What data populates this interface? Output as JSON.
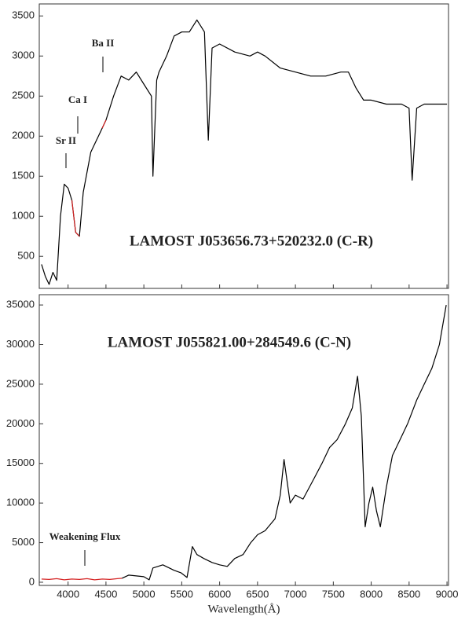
{
  "chart_data": [
    {
      "type": "line",
      "title": "LAMOST J053656.73+520232.0 (C-R)",
      "annotations": [
        "Sr II",
        "Ca I",
        "Ba II"
      ],
      "x": [
        3650,
        3700,
        3750,
        3800,
        3850,
        3900,
        3950,
        4000,
        4050,
        4100,
        4150,
        4200,
        4300,
        4400,
        4450,
        4500,
        4600,
        4700,
        4800,
        4900,
        5000,
        5100,
        5120,
        5170,
        5200,
        5300,
        5400,
        5500,
        5600,
        5700,
        5800,
        5850,
        5900,
        6000,
        6200,
        6400,
        6500,
        6600,
        6800,
        7000,
        7200,
        7400,
        7600,
        7700,
        7800,
        7900,
        8000,
        8200,
        8400,
        8500,
        8540,
        8600,
        8700,
        8800,
        9000
      ],
      "series": [
        {
          "color": "#000000",
          "values": [
            400,
            250,
            150,
            300,
            200,
            1000,
            1400,
            1350,
            1200,
            800,
            750,
            1300,
            1800,
            2000,
            2100,
            2200,
            2500,
            2750,
            2700,
            2800,
            2650,
            2500,
            1500,
            2700,
            2800,
            3000,
            3250,
            3300,
            3300,
            3450,
            3300,
            1950,
            3100,
            3150,
            3050,
            3000,
            3050,
            3000,
            2850,
            2800,
            2750,
            2750,
            2800,
            2800,
            2600,
            2450,
            2450,
            2400,
            2400,
            2350,
            1450,
            2350,
            2400,
            2400,
            2400
          ]
        },
        {
          "color": "#d42020",
          "values": [
            null,
            null,
            null,
            null,
            null,
            null,
            null,
            null,
            1200,
            800,
            750,
            null,
            null,
            null,
            2100,
            2200,
            null,
            null,
            null,
            null,
            null,
            null,
            null,
            null,
            null,
            null,
            null,
            null,
            null,
            null,
            null,
            null,
            null,
            null,
            null,
            null,
            null,
            null,
            null,
            null,
            null,
            null,
            null,
            null,
            null,
            null,
            null,
            null,
            null,
            null,
            null,
            null,
            null,
            null,
            null
          ]
        }
      ],
      "xlim": [
        3620,
        9020
      ],
      "ylim": [
        100,
        3650
      ],
      "xticks": [
        4000,
        4500,
        5000,
        5500,
        6000,
        6500,
        7000,
        7500,
        8000,
        8500,
        9000
      ],
      "show_xtick_labels": false,
      "yticks": [
        500,
        1000,
        1500,
        2000,
        2500,
        3000,
        3500
      ]
    },
    {
      "type": "line",
      "title": "LAMOST J055821.00+284549.6 (C-N)",
      "annotations": [
        "Weakening Flux"
      ],
      "x_label": "Wavelength(Å)",
      "x": [
        3650,
        3750,
        3850,
        3950,
        4050,
        4150,
        4250,
        4350,
        4450,
        4550,
        4650,
        4710,
        4800,
        4900,
        5000,
        5070,
        5120,
        5250,
        5400,
        5490,
        5570,
        5640,
        5700,
        5790,
        5900,
        6000,
        6100,
        6200,
        6310,
        6410,
        6500,
        6600,
        6730,
        6800,
        6850,
        6930,
        7000,
        7100,
        7240,
        7350,
        7450,
        7550,
        7660,
        7750,
        7820,
        7870,
        7920,
        7970,
        8020,
        8070,
        8120,
        8200,
        8280,
        8380,
        8480,
        8600,
        8700,
        8800,
        8900,
        8990
      ],
      "series": [
        {
          "color": "#000000",
          "values": [
            null,
            null,
            null,
            null,
            null,
            null,
            null,
            null,
            null,
            null,
            null,
            500,
            900,
            800,
            700,
            300,
            1800,
            2200,
            1500,
            1200,
            600,
            4500,
            3500,
            3000,
            2500,
            2200,
            2000,
            3000,
            3500,
            5000,
            6000,
            6500,
            8000,
            11000,
            15500,
            10000,
            11000,
            10500,
            13000,
            15000,
            17000,
            18000,
            20000,
            22000,
            26000,
            21000,
            7000,
            10000,
            12000,
            9000,
            7000,
            12000,
            16000,
            18000,
            20000,
            23000,
            25000,
            27000,
            30000,
            35000
          ]
        },
        {
          "color": "#d42020",
          "values": [
            400,
            350,
            450,
            300,
            400,
            350,
            450,
            300,
            400,
            350,
            450,
            500,
            null,
            null,
            null,
            null,
            null,
            null,
            null,
            null,
            null,
            null,
            null,
            null,
            null,
            null,
            null,
            null,
            null,
            null,
            null,
            null,
            null,
            null,
            null,
            null,
            null,
            null,
            null,
            null,
            null,
            null,
            null,
            null,
            null,
            null,
            null,
            null,
            null,
            null,
            null,
            null,
            null,
            null,
            null,
            null,
            null,
            null,
            null,
            null
          ]
        }
      ],
      "xlim": [
        3620,
        9020
      ],
      "ylim": [
        -400,
        36300
      ],
      "xticks": [
        4000,
        4500,
        5000,
        5500,
        6000,
        6500,
        7000,
        7500,
        8000,
        8500,
        9000
      ],
      "show_xtick_labels": true,
      "yticks": [
        0,
        5000,
        10000,
        15000,
        20000,
        25000,
        30000,
        35000
      ]
    }
  ]
}
